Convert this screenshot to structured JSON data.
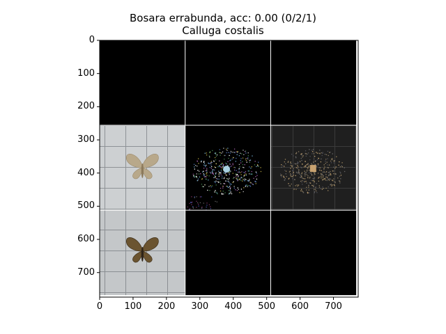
{
  "title_line1": "Bosara errabunda, acc: 0.00 (0/2/1)",
  "title_line2": "Calluga costalis",
  "chart_data": {
    "type": "image-grid",
    "grid": {
      "rows": 3,
      "cols": 3,
      "tile_size": 256
    },
    "xlim": [
      0,
      774
    ],
    "ylim": [
      774,
      0
    ],
    "xticks": [
      0,
      100,
      200,
      300,
      400,
      500,
      600,
      700
    ],
    "yticks": [
      0,
      100,
      200,
      300,
      400,
      500,
      600,
      700
    ],
    "tiles": [
      {
        "row": 0,
        "col": 0,
        "content": "black"
      },
      {
        "row": 0,
        "col": 1,
        "content": "black"
      },
      {
        "row": 0,
        "col": 2,
        "content": "black"
      },
      {
        "row": 1,
        "col": 0,
        "content": "moth-photo-pale"
      },
      {
        "row": 1,
        "col": 1,
        "content": "saliency-map-dark"
      },
      {
        "row": 1,
        "col": 2,
        "content": "saliency-overlay"
      },
      {
        "row": 2,
        "col": 0,
        "content": "moth-photo-dark"
      },
      {
        "row": 2,
        "col": 1,
        "content": "black"
      },
      {
        "row": 2,
        "col": 2,
        "content": "black"
      }
    ],
    "colors": {
      "black": "#000000",
      "grid_line": "#ffffff",
      "photo_bg": "#c9ccce",
      "moth_pale": "#b8a88a",
      "moth_dark": "#6b5430"
    }
  }
}
